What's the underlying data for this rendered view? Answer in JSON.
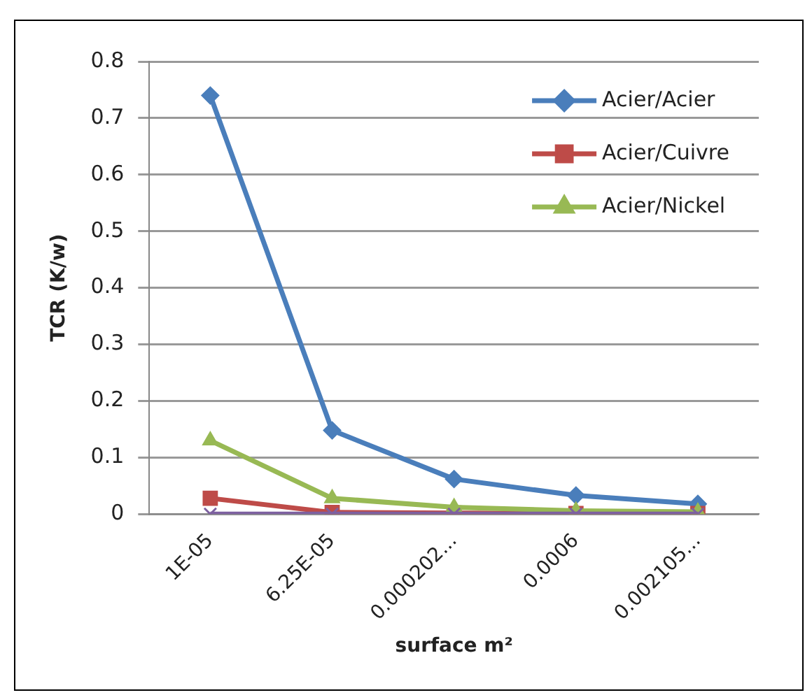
{
  "chart_data": {
    "type": "line",
    "xlabel": "surface m²",
    "ylabel": "TCR (K/w)",
    "categories": [
      "1E-05",
      "6.25E-05",
      "0.000202...",
      "0.0006",
      "0.002105..."
    ],
    "series": [
      {
        "name": "Acier/Acier",
        "color": "#4a7ebb",
        "marker": "diamond",
        "values": [
          0.74,
          0.148,
          0.062,
          0.033,
          0.018
        ]
      },
      {
        "name": "Acier/Cuivre",
        "color": "#be4b48",
        "marker": "square",
        "values": [
          0.028,
          0.003,
          0.002,
          0.001,
          0.001
        ]
      },
      {
        "name": "Acier/Nickel",
        "color": "#98b954",
        "marker": "triangle",
        "values": [
          0.13,
          0.028,
          0.012,
          0.006,
          0.004
        ]
      },
      {
        "color": "#7d60a0",
        "marker": "cross",
        "values": [
          0,
          0,
          0,
          0,
          0
        ]
      }
    ],
    "ylim": [
      0,
      0.8
    ],
    "yticks": [
      0,
      0.1,
      0.2,
      0.3,
      0.4,
      0.5,
      0.6,
      0.7,
      0.8
    ],
    "grid": "y",
    "legend": "top right",
    "line_style": "solid"
  }
}
